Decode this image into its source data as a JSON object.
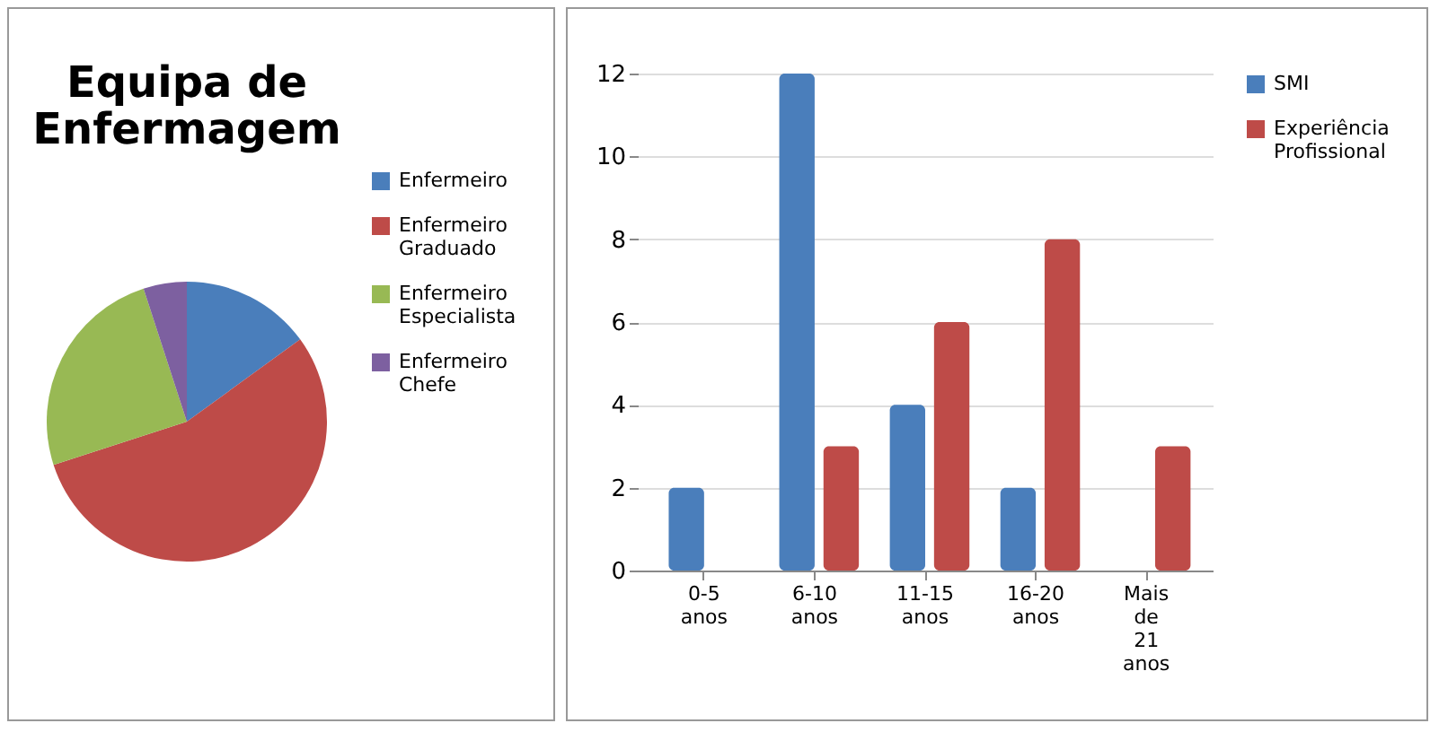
{
  "chart_data": [
    {
      "type": "pie",
      "title": "Equipa de Enfermagem",
      "categories": [
        "Enfermeiro",
        "Enfermeiro Graduado",
        "Enfermeiro Especialista",
        "Enfermeiro Chefe"
      ],
      "values": [
        15,
        55,
        25,
        5
      ],
      "colors": [
        "#4a7ebb",
        "#be4b48",
        "#98b954",
        "#7d60a0"
      ],
      "legend": "right"
    },
    {
      "type": "bar",
      "categories": [
        "0-5 anos",
        "6-10 anos",
        "11-15 anos",
        "16-20 anos",
        "Mais de 21 anos"
      ],
      "series": [
        {
          "name": "SMI",
          "color": "#4a7ebb",
          "values": [
            2,
            12,
            4,
            2,
            0
          ]
        },
        {
          "name": "Experiência Profissional",
          "color": "#be4b48",
          "values": [
            0,
            3,
            6,
            8,
            3
          ]
        }
      ],
      "ylim": [
        0,
        12
      ],
      "yticks": [
        0,
        2,
        4,
        6,
        8,
        10,
        12
      ],
      "grid": "y",
      "legend": "right"
    }
  ]
}
